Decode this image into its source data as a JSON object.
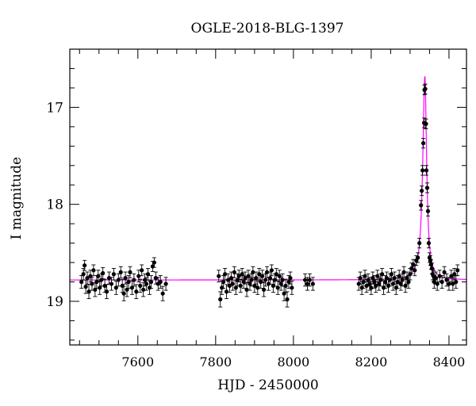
{
  "chart_data": {
    "type": "scatter",
    "title": "OGLE-2018-BLG-1397",
    "xlabel": "HJD - 2450000",
    "ylabel": "I magnitude",
    "xlim": [
      7425,
      8445
    ],
    "ylim": [
      19.45,
      16.4
    ],
    "y_inverted": true,
    "x_major_ticks": [
      7600,
      7800,
      8000,
      8200,
      8400
    ],
    "x_minor_step": 50,
    "y_major_ticks": [
      17,
      18,
      19
    ],
    "y_minor_step": 0.2,
    "grid": false,
    "colors": {
      "data": "#000000",
      "model": "#ff00ff",
      "frame": "#000000"
    },
    "model": {
      "baseline_mag": 18.78,
      "peak_time": 8338,
      "peak_mag": 16.68,
      "rise_width_days": 6.5,
      "fall_width_days": 5.5
    },
    "points": [
      [
        7455,
        18.8
      ],
      [
        7460,
        18.72
      ],
      [
        7463,
        18.63
      ],
      [
        7466,
        18.85
      ],
      [
        7470,
        18.76
      ],
      [
        7474,
        18.9
      ],
      [
        7478,
        18.74
      ],
      [
        7482,
        18.82
      ],
      [
        7486,
        18.68
      ],
      [
        7490,
        18.88
      ],
      [
        7494,
        18.8
      ],
      [
        7498,
        18.74
      ],
      [
        7502,
        18.86
      ],
      [
        7506,
        18.78
      ],
      [
        7510,
        18.71
      ],
      [
        7515,
        18.84
      ],
      [
        7520,
        18.9
      ],
      [
        7526,
        18.76
      ],
      [
        7532,
        18.82
      ],
      [
        7538,
        18.72
      ],
      [
        7544,
        18.86
      ],
      [
        7550,
        18.78
      ],
      [
        7556,
        18.7
      ],
      [
        7560,
        18.84
      ],
      [
        7564,
        18.92
      ],
      [
        7568,
        18.76
      ],
      [
        7572,
        18.88
      ],
      [
        7576,
        18.8
      ],
      [
        7580,
        18.7
      ],
      [
        7585,
        18.86
      ],
      [
        7590,
        18.78
      ],
      [
        7596,
        18.9
      ],
      [
        7602,
        18.74
      ],
      [
        7606,
        18.84
      ],
      [
        7610,
        18.68
      ],
      [
        7614,
        18.88
      ],
      [
        7618,
        18.78
      ],
      [
        7622,
        18.82
      ],
      [
        7626,
        18.72
      ],
      [
        7630,
        18.86
      ],
      [
        7634,
        18.8
      ],
      [
        7638,
        18.64
      ],
      [
        7642,
        18.6
      ],
      [
        7646,
        18.76
      ],
      [
        7652,
        18.82
      ],
      [
        7658,
        18.8
      ],
      [
        7664,
        18.92
      ],
      [
        7672,
        18.82
      ],
      [
        7808,
        18.74
      ],
      [
        7812,
        18.98
      ],
      [
        7816,
        18.86
      ],
      [
        7820,
        18.8
      ],
      [
        7824,
        18.72
      ],
      [
        7828,
        18.9
      ],
      [
        7832,
        18.78
      ],
      [
        7836,
        18.84
      ],
      [
        7840,
        18.76
      ],
      [
        7844,
        18.82
      ],
      [
        7848,
        18.7
      ],
      [
        7852,
        18.86
      ],
      [
        7856,
        18.78
      ],
      [
        7860,
        18.74
      ],
      [
        7864,
        18.84
      ],
      [
        7868,
        18.72
      ],
      [
        7872,
        18.8
      ],
      [
        7876,
        18.76
      ],
      [
        7880,
        18.88
      ],
      [
        7884,
        18.74
      ],
      [
        7888,
        18.82
      ],
      [
        7892,
        18.78
      ],
      [
        7896,
        18.7
      ],
      [
        7900,
        18.84
      ],
      [
        7904,
        18.76
      ],
      [
        7908,
        18.86
      ],
      [
        7912,
        18.72
      ],
      [
        7916,
        18.8
      ],
      [
        7920,
        18.74
      ],
      [
        7924,
        18.88
      ],
      [
        7928,
        18.78
      ],
      [
        7932,
        18.7
      ],
      [
        7936,
        18.82
      ],
      [
        7940,
        18.76
      ],
      [
        7944,
        18.68
      ],
      [
        7948,
        18.84
      ],
      [
        7952,
        18.78
      ],
      [
        7956,
        18.72
      ],
      [
        7960,
        18.86
      ],
      [
        7964,
        18.74
      ],
      [
        7968,
        18.82
      ],
      [
        7972,
        18.78
      ],
      [
        7976,
        18.92
      ],
      [
        7980,
        18.84
      ],
      [
        7984,
        18.98
      ],
      [
        7988,
        18.8
      ],
      [
        7992,
        18.76
      ],
      [
        7996,
        18.86
      ],
      [
        8030,
        18.78
      ],
      [
        8036,
        18.82
      ],
      [
        8042,
        18.78
      ],
      [
        8050,
        18.82
      ],
      [
        8168,
        18.82
      ],
      [
        8172,
        18.76
      ],
      [
        8176,
        18.86
      ],
      [
        8180,
        18.8
      ],
      [
        8184,
        18.74
      ],
      [
        8188,
        18.84
      ],
      [
        8192,
        18.78
      ],
      [
        8196,
        18.82
      ],
      [
        8200,
        18.86
      ],
      [
        8204,
        18.76
      ],
      [
        8208,
        18.8
      ],
      [
        8212,
        18.84
      ],
      [
        8216,
        18.74
      ],
      [
        8220,
        18.82
      ],
      [
        8224,
        18.78
      ],
      [
        8228,
        18.72
      ],
      [
        8232,
        18.86
      ],
      [
        8236,
        18.8
      ],
      [
        8240,
        18.76
      ],
      [
        8244,
        18.84
      ],
      [
        8248,
        18.78
      ],
      [
        8252,
        18.72
      ],
      [
        8256,
        18.82
      ],
      [
        8260,
        18.76
      ],
      [
        8264,
        18.86
      ],
      [
        8268,
        18.8
      ],
      [
        8272,
        18.74
      ],
      [
        8276,
        18.82
      ],
      [
        8280,
        18.78
      ],
      [
        8284,
        18.7
      ],
      [
        8288,
        18.84
      ],
      [
        8292,
        18.76
      ],
      [
        8296,
        18.8
      ],
      [
        8300,
        18.72
      ],
      [
        8304,
        18.66
      ],
      [
        8308,
        18.62
      ],
      [
        8312,
        18.68
      ],
      [
        8316,
        18.58
      ],
      [
        8320,
        18.55
      ],
      [
        8324,
        18.4
      ],
      [
        8328,
        18.01
      ],
      [
        8330,
        17.86
      ],
      [
        8332,
        17.65
      ],
      [
        8334,
        17.37
      ],
      [
        8336,
        17.16
      ],
      [
        8337,
        16.82
      ],
      [
        8339,
        16.81
      ],
      [
        8340,
        17.17
      ],
      [
        8341,
        17.17
      ],
      [
        8342,
        17.65
      ],
      [
        8344,
        17.83
      ],
      [
        8346,
        18.07
      ],
      [
        8348,
        18.4
      ],
      [
        8350,
        18.55
      ],
      [
        8352,
        18.58
      ],
      [
        8354,
        18.62
      ],
      [
        8356,
        18.66
      ],
      [
        8358,
        18.72
      ],
      [
        8360,
        18.74
      ],
      [
        8362,
        18.8
      ],
      [
        8366,
        18.76
      ],
      [
        8370,
        18.82
      ],
      [
        8376,
        18.74
      ],
      [
        8382,
        18.8
      ],
      [
        8388,
        18.7
      ],
      [
        8394,
        18.78
      ],
      [
        8400,
        18.82
      ],
      [
        8406,
        18.74
      ],
      [
        8410,
        18.82
      ],
      [
        8414,
        18.72
      ],
      [
        8418,
        18.8
      ],
      [
        8422,
        18.68
      ]
    ]
  }
}
